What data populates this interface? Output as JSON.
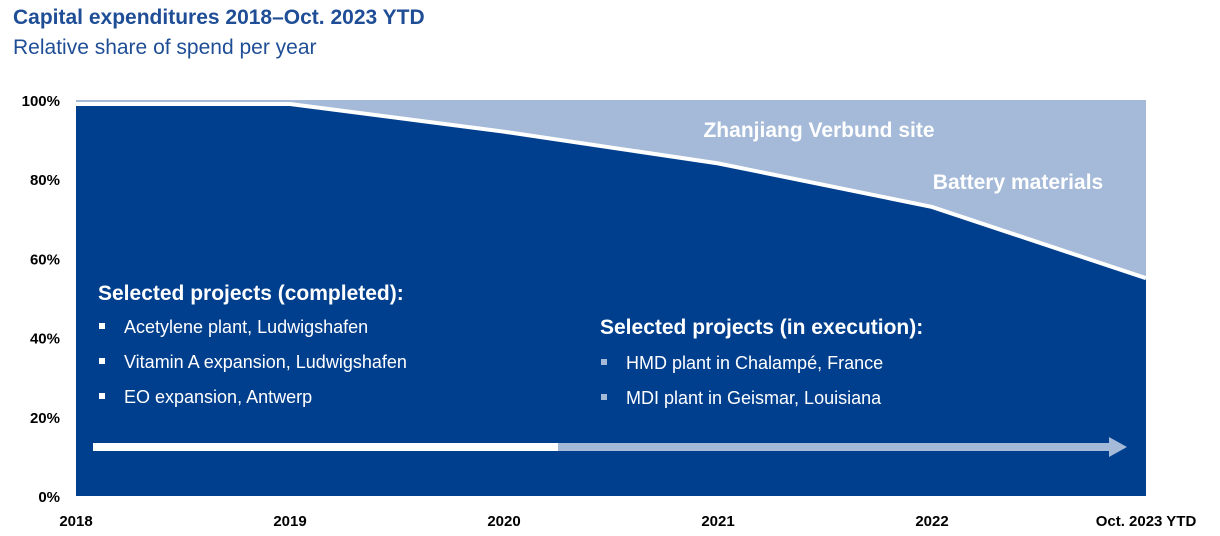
{
  "header": {
    "title": "Capital expenditures 2018–Oct. 2023 YTD",
    "subtitle": "Relative share of spend per year"
  },
  "chart_data": {
    "type": "area",
    "title": "Capital expenditures 2018–Oct. 2023 YTD",
    "subtitle": "Relative share of spend per year",
    "categories": [
      "2018",
      "2019",
      "2020",
      "2021",
      "2022",
      "Oct. 2023 YTD"
    ],
    "y_ticks": [
      "0%",
      "20%",
      "40%",
      "60%",
      "80%",
      "100%"
    ],
    "ylim": [
      0,
      100
    ],
    "stacked": true,
    "series": [
      {
        "name": "",
        "color": "#003f8e",
        "values": [
          99,
          99,
          92,
          84,
          73,
          55
        ]
      },
      {
        "name": "Battery materials",
        "color": "#a4bad8",
        "values": [
          1,
          1,
          8,
          16,
          27,
          45
        ]
      }
    ],
    "overlay_series": {
      "name": "Zhanjiang Verbund site",
      "color": "#a4bad8"
    },
    "annotations": {
      "completed": {
        "title": "Selected projects (completed):",
        "items": [
          "Acetylene plant, Ludwigshafen",
          "Vitamin A expansion, Ludwigshafen",
          "EO expansion, Antwerp"
        ]
      },
      "execution": {
        "title": "Selected projects (in execution):",
        "items": [
          "HMD plant in Chalampé, France",
          "MDI plant in Geismar, Louisiana"
        ]
      }
    },
    "timeline_arrow": {
      "split_fraction": 0.45,
      "solid_color": "#ffffff",
      "light_color": "#a4bad8"
    },
    "grid": false
  }
}
